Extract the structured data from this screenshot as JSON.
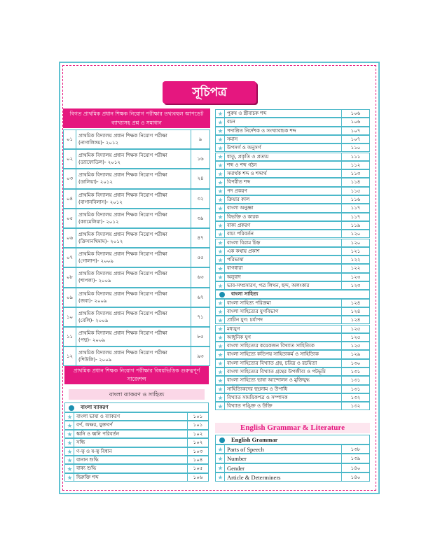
{
  "title": "সূচিপত্র",
  "left": {
    "header": "বিগত প্রাথমিক প্রধান শিক্ষক নিয়োগ পরীক্ষার তথ্যবহুল আপডেট ব্যাখ্যাসহ প্রশ্ন ও সমাধান",
    "chapters": [
      {
        "no": "০১",
        "title": "প্রাথমিক বিদ্যালয় প্রধান শিক্ষক নিয়োগ পরীক্ষা",
        "subtitle": "(নাগালিঙ্গম)- ২০১২",
        "page": "৯"
      },
      {
        "no": "০২",
        "title": "প্রাথমিক বিদ্যালয় প্রধান শিক্ষক নিয়োগ পরীক্ষা",
        "subtitle": "(ড্যাফোডিল)- ২০১২",
        "page": "১৬"
      },
      {
        "no": "০৩",
        "title": "প্রাথমিক বিদ্যালয় প্রধান শিক্ষক নিয়োগ পরীক্ষা",
        "subtitle": "(ডালিয়া)- ২০১২",
        "page": "২৪"
      },
      {
        "no": "০৪",
        "title": "প্রাথমিক বিদ্যালয় প্রধান শিক্ষক নিয়োগ পরীক্ষা",
        "subtitle": "(বাগানবিলাস)- ২০১২",
        "page": "৩২"
      },
      {
        "no": "০৫",
        "title": "প্রাথমিক বিদ্যালয় প্রধান শিক্ষক নিয়োগ পরীক্ষা",
        "subtitle": "(ক্যামেলিয়া)- ২০১২",
        "page": "৩৯"
      },
      {
        "no": "০৬",
        "title": "প্রাথমিক বিদ্যালয় প্রধান শিক্ষক নিয়োগ পরীক্ষা",
        "subtitle": "(ক্রিসানথিমাম)- ২০১২",
        "page": "৪৭"
      },
      {
        "no": "০৭",
        "title": "প্রাথমিক বিদ্যালয় প্রধান শিক্ষক নিয়োগ পরীক্ষা",
        "subtitle": "(গোলাপ)- ২০০৯",
        "page": "৫৫"
      },
      {
        "no": "০৮",
        "title": "প্রাথমিক বিদ্যালয় প্রধান শিক্ষক নিয়োগ পরীক্ষা",
        "subtitle": "(শাপলা)- ২০০৯",
        "page": "৬৩"
      },
      {
        "no": "০৯",
        "title": "প্রাথমিক বিদ্যালয় প্রধান শিক্ষক নিয়োগ পরীক্ষা",
        "subtitle": "(জবা)- ২০০৯",
        "page": "৬৭"
      },
      {
        "no": "১০",
        "title": "প্রাথমিক বিদ্যালয় প্রধান শিক্ষক নিয়োগ পরীক্ষা",
        "subtitle": "(বেলি)- ২০০৯",
        "page": "৭১"
      },
      {
        "no": "১১",
        "title": "প্রাথমিক বিদ্যালয় প্রধান শিক্ষক নিয়োগ পরীক্ষা",
        "subtitle": "(পদ্ম)- ২০০৯",
        "page": "৮৫"
      },
      {
        "no": "১২",
        "title": "প্রাথমিক বিদ্যালয় প্রধান শিক্ষক নিয়োগ পরীক্ষা",
        "subtitle": "(শিউলি)- ২০০৯",
        "page": "৯৩"
      }
    ],
    "suggestions_header": "প্রাথমিক প্রধান শিক্ষক নিয়োগ পরীক্ষার বিষয়ভিত্তিক গুরুত্বপূর্ণ সাজেশন্স",
    "subject_band": "বাংলা ব্যাকরণ ও সাহিত্য",
    "section": {
      "title": "বাংলা ব্যাকরণ",
      "items": [
        {
          "title": "বাংলা ভাষা ও ব্যাকরণ",
          "page": "১০১"
        },
        {
          "title": "বর্ণ, অক্ষর, যুক্তবর্ণ",
          "page": "১০১"
        },
        {
          "title": "ধ্বনি ও ধ্বনি পরিবর্তন",
          "page": "১০২"
        },
        {
          "title": "সন্ধি",
          "page": "১০২"
        },
        {
          "title": "ণ-ত্ব ও ষ-ত্ব বিধান",
          "page": "১০৩"
        },
        {
          "title": "বানান শুদ্ধি",
          "page": "১০৪"
        },
        {
          "title": "বাক্য শুদ্ধি",
          "page": "১০৫"
        },
        {
          "title": "দ্বিরুক্তি শব্দ",
          "page": "১০৬"
        }
      ]
    }
  },
  "right": {
    "items": [
      {
        "title": "পুরুষ ও স্ত্রীবাচক শব্দ",
        "page": "১০৬"
      },
      {
        "title": "বচন",
        "page": "১০৬"
      },
      {
        "title": "পদাশ্রিত নির্দেশক ও সংখ্যাবাচক শব্দ",
        "page": "১০৭"
      },
      {
        "title": "সমাস",
        "page": "১০৭"
      },
      {
        "title": "উপসর্গ ও অনুসর্গ",
        "page": "১১০"
      },
      {
        "title": "ধাতু, প্রকৃতি ও প্রত্যয়",
        "page": "১১১"
      },
      {
        "title": "শব্দ ও শব্দ গঠন",
        "page": "১১২"
      },
      {
        "title": "সমার্থক শব্দ ও শব্দার্থ",
        "page": "১১৩"
      },
      {
        "title": "বিপরীত শব্দ",
        "page": "১১৪"
      },
      {
        "title": "পদ প্রকরণ",
        "page": "১১৫"
      },
      {
        "title": "ক্রিয়ার কাল",
        "page": "১১৬"
      },
      {
        "title": "বাংলা অনুজ্ঞা",
        "page": "১১৭"
      },
      {
        "title": "বিভক্তি ও কারক",
        "page": "১১৭"
      },
      {
        "title": "বাক্য প্রকরণ",
        "page": "১১৯"
      },
      {
        "title": "বাচ্য পরিবর্তন",
        "page": "১২০"
      },
      {
        "title": "বাংলা বিরাম চিহ্ন",
        "page": "১২০"
      },
      {
        "title": "এক কথায় প্রকাশ",
        "page": "১২১"
      },
      {
        "title": "পরিভাষা",
        "page": "১২২"
      },
      {
        "title": "বাগধারা",
        "page": "১২২"
      },
      {
        "title": "অনুবাদ",
        "page": "১২৩"
      },
      {
        "title": "ভাব-সম্প্রসারণ, পত্র লিখন, ছন্দ, অলংকার",
        "page": "১২৩"
      }
    ],
    "literature": {
      "title": "বাংলা সাহিত্য",
      "items": [
        {
          "title": "বাংলা সাহিত্য পরিক্রমা",
          "page": "১২৪"
        },
        {
          "title": "বাংলা সাহিত্যের যুগবিভাগ",
          "page": "১২৪"
        },
        {
          "title": "প্রাচীন যুগ: চর্যাপদ",
          "page": "১২৪"
        },
        {
          "title": "মধ্যযুগ",
          "page": "১২৫"
        },
        {
          "title": "আধুনিক যুগ",
          "page": "১২৫"
        },
        {
          "title": "বাংলা সাহিত্যের কয়েকজন বিখ্যাত সাহিত্যিক",
          "page": "১২৫"
        },
        {
          "title": "বাংলা সাহিত্যে কতিপয় সাহিত্যকর্ম ও সাহিত্যিক",
          "page": "১২৯"
        },
        {
          "title": "বাংলা সাহিত্যের বিখ্যাত গ্রন্থ, চরিত্র ও রচয়িতা",
          "page": "১৩০"
        },
        {
          "title": "বাংলা সাহিত্যের বিখ্যাত গ্রন্থের উপজীব্য ও পটভূমি",
          "page": "১৩১"
        },
        {
          "title": "বাংলা সাহিত্যে ভাষা আন্দোলন ও মুক্তিযুদ্ধ",
          "page": "১৩১"
        },
        {
          "title": "সাহিত্যিকদের ছদ্মনাম ও উপাধি",
          "page": "১৩১"
        },
        {
          "title": "বিখ্যাত সাময়িকপত্র ও সম্পাদক",
          "page": "১৩২"
        },
        {
          "title": "বিখ্যাত পঙ্ক্তি ও উক্তি",
          "page": "১৩২"
        }
      ]
    },
    "english_band": "English Grammar & Literature",
    "english": {
      "title": "English Grammar",
      "items": [
        {
          "title": "Parts of Speech",
          "page": "১৩৮"
        },
        {
          "title": "Number",
          "page": "১৩৯"
        },
        {
          "title": "Gender",
          "page": "১৪০"
        },
        {
          "title": "Article & Determiners",
          "page": "১৪০"
        }
      ]
    }
  }
}
